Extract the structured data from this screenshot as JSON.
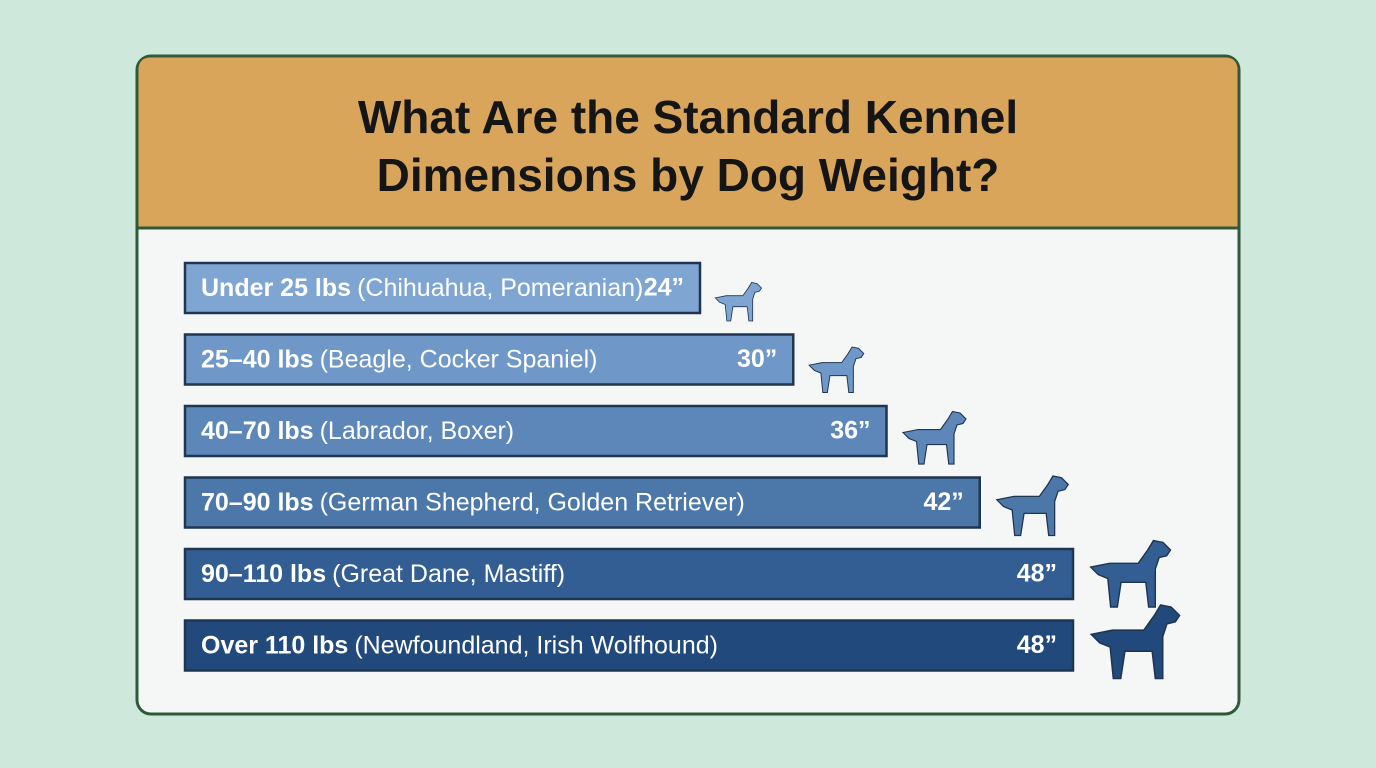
{
  "chart_data": {
    "type": "bar",
    "orientation": "horizontal",
    "title": "What Are the Standard Kennel Dimensions by Dog Weight?",
    "categories": [
      "Under 25 lbs",
      "25–40 lbs",
      "40–70 lbs",
      "70–90 lbs",
      "90–110 lbs",
      "Over 110 lbs"
    ],
    "breeds": [
      "(Chihuahua, Pomeranian)",
      "(Beagle, Cocker Spaniel)",
      "(Labrador, Boxer)",
      "(German Shepherd, Golden Retriever)",
      "(Great Dane, Mastiff)",
      "(Newfoundland, Irish Wolfhound)"
    ],
    "values": [
      24,
      30,
      36,
      42,
      48,
      48
    ],
    "value_labels": [
      "24”",
      "30”",
      "36”",
      "42”",
      "48”",
      "48”"
    ],
    "colors": [
      "#7fa6d2",
      "#6f98c9",
      "#5d87b9",
      "#4c77a9",
      "#335e93",
      "#22497b"
    ]
  }
}
